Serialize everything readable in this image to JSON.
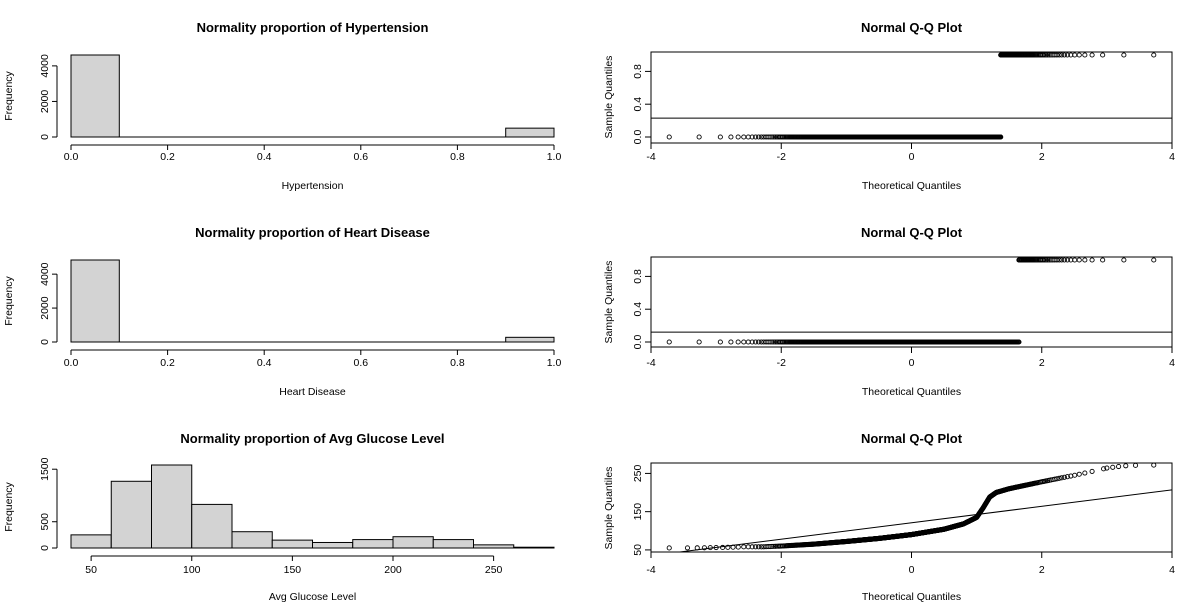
{
  "chart_data": [
    {
      "type": "bar",
      "title": "Normality proportion of Hypertension",
      "xlabel": "Hypertension",
      "ylabel": "Frequency",
      "bins": [
        [
          0.0,
          0.1
        ],
        [
          0.9,
          1.0
        ]
      ],
      "values": [
        4612,
        498
      ],
      "xlim": [
        0,
        1
      ],
      "ylim": [
        0,
        4612
      ],
      "xticks": [
        "0.0",
        "0.2",
        "0.4",
        "0.6",
        "0.8",
        "1.0"
      ],
      "yticks": [
        "0",
        "2000",
        "4000"
      ],
      "grid": false
    },
    {
      "type": "scatter",
      "title": "Normal Q-Q Plot",
      "xlabel": "Theoretical Quantiles",
      "ylabel": "Sample Quantiles",
      "xlim": [
        -4,
        4
      ],
      "ylim": [
        0,
        1
      ],
      "xticks": [
        "-4",
        "-2",
        "0",
        "2",
        "4"
      ],
      "yticks": [
        "0.0",
        "0.4",
        "0.8"
      ],
      "groups": [
        {
          "y": 0,
          "x_from": -3.72,
          "x_to": 1.37
        },
        {
          "y": 1,
          "x_from": 1.37,
          "x_to": 3.72
        }
      ],
      "line": [
        [
          -4,
          0.23
        ],
        [
          4,
          0.23
        ]
      ],
      "grid": false
    },
    {
      "type": "bar",
      "title": "Normality proportion of Heart Disease",
      "xlabel": "Heart Disease",
      "ylabel": "Frequency",
      "bins": [
        [
          0.0,
          0.1
        ],
        [
          0.9,
          1.0
        ]
      ],
      "values": [
        4834,
        276
      ],
      "xlim": [
        0,
        1
      ],
      "ylim": [
        0,
        4834
      ],
      "xticks": [
        "0.0",
        "0.2",
        "0.4",
        "0.6",
        "0.8",
        "1.0"
      ],
      "yticks": [
        "0",
        "2000",
        "4000"
      ],
      "grid": false
    },
    {
      "type": "scatter",
      "title": "Normal Q-Q Plot",
      "xlabel": "Theoretical Quantiles",
      "ylabel": "Sample Quantiles",
      "xlim": [
        -4,
        4
      ],
      "ylim": [
        0,
        1
      ],
      "xticks": [
        "-4",
        "-2",
        "0",
        "2",
        "4"
      ],
      "yticks": [
        "0.0",
        "0.4",
        "0.8"
      ],
      "groups": [
        {
          "y": 0,
          "x_from": -3.72,
          "x_to": 1.65
        },
        {
          "y": 1,
          "x_from": 1.65,
          "x_to": 3.72
        }
      ],
      "line": [
        [
          -4,
          0.12
        ],
        [
          4,
          0.12
        ]
      ],
      "grid": false
    },
    {
      "type": "bar",
      "title": "Normality proportion of Avg Glucose Level",
      "xlabel": "Avg Glucose Level",
      "ylabel": "Frequency",
      "bins": [
        [
          40,
          60
        ],
        [
          60,
          80
        ],
        [
          80,
          100
        ],
        [
          100,
          120
        ],
        [
          120,
          140
        ],
        [
          140,
          160
        ],
        [
          160,
          180
        ],
        [
          180,
          200
        ],
        [
          200,
          220
        ],
        [
          220,
          240
        ],
        [
          240,
          260
        ],
        [
          260,
          280
        ]
      ],
      "values": [
        250,
        1270,
        1580,
        830,
        310,
        150,
        105,
        160,
        215,
        160,
        60,
        15
      ],
      "xlim": [
        40,
        280
      ],
      "ylim": [
        0,
        1580
      ],
      "xticks": [
        "50",
        "100",
        "150",
        "200",
        "250"
      ],
      "yticks": [
        "0",
        "500",
        "1500"
      ],
      "grid": false
    },
    {
      "type": "scatter",
      "title": "Normal Q-Q Plot",
      "xlabel": "Theoretical Quantiles",
      "ylabel": "Sample Quantiles",
      "xlim": [
        -4,
        4
      ],
      "ylim": [
        55,
        272
      ],
      "xticks": [
        "-4",
        "-2",
        "0",
        "2",
        "4"
      ],
      "yticks": [
        "50",
        "150",
        "250"
      ],
      "curve_x": [
        -2.3,
        -2.0,
        -1.5,
        -1.0,
        -0.5,
        0.0,
        0.5,
        0.8,
        1.0,
        1.1,
        1.2,
        1.3,
        1.5,
        2.0,
        2.5,
        2.9
      ],
      "curve_y": [
        58,
        60,
        65,
        72,
        80,
        90,
        104,
        118,
        135,
        160,
        188,
        200,
        210,
        228,
        245,
        260
      ],
      "tail_left": [
        [
          -3.72,
          55.1
        ],
        [
          -3.44,
          55.3
        ],
        [
          -3.29,
          55.4
        ],
        [
          -3.18,
          55.6
        ],
        [
          -3.09,
          56
        ],
        [
          -3.0,
          56.2
        ],
        [
          -2.9,
          56.4
        ],
        [
          -2.82,
          56.7
        ],
        [
          -2.74,
          57
        ],
        [
          -2.66,
          57.3
        ]
      ],
      "tail_right": [
        [
          2.95,
          262
        ],
        [
          3.0,
          264
        ],
        [
          3.09,
          266
        ],
        [
          3.18,
          268
        ],
        [
          3.29,
          270
        ],
        [
          3.44,
          271
        ],
        [
          3.72,
          271.7
        ]
      ],
      "line": [
        [
          -4,
          35
        ],
        [
          4,
          207
        ]
      ],
      "grid": false
    }
  ]
}
